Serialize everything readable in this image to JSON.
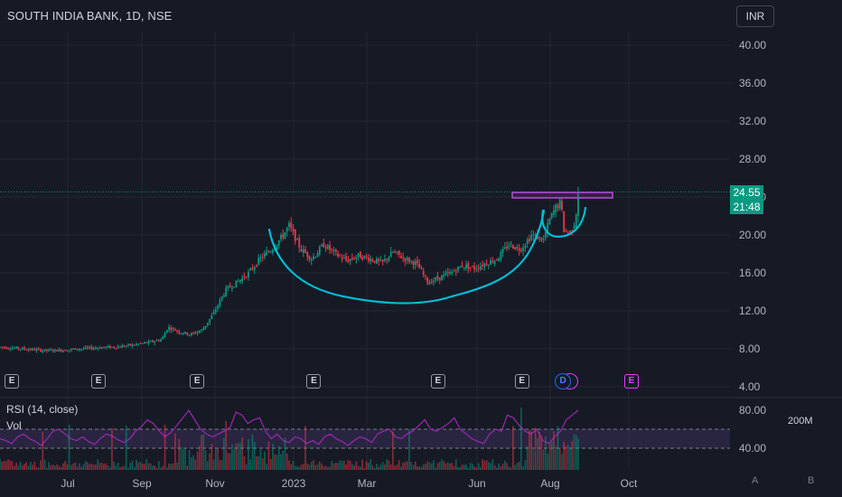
{
  "header": {
    "title": "SOUTH INDIA BANK, 1D, NSE",
    "currency": "INR"
  },
  "price_tag": {
    "price": "24.55",
    "countdown": "21:48"
  },
  "events": {
    "earnings_label": "E",
    "dividend_label": "D"
  },
  "rsi_panel": {
    "label": "RSI (14, close)",
    "vol_label": "Vol",
    "vol_scale": "200M"
  },
  "bottom_buttons": {
    "auto": "A",
    "log": "B"
  },
  "colors": {
    "background": "#161a25",
    "up": "#089981",
    "down": "#f23645",
    "rsi_line": "#9c27b0",
    "rsi_band": "#7e57c2",
    "drawing_cup": "#00bcd4",
    "drawing_rect": "#9c27b0"
  },
  "chart_data": {
    "type": "candlestick",
    "title": "SOUTH INDIA BANK, 1D, NSE",
    "x_ticks": [
      "Jul",
      "Sep",
      "Nov",
      "2023",
      "Mar",
      "Jun",
      "Aug",
      "Oct"
    ],
    "y_ticks": [
      "40.00",
      "36.00",
      "32.00",
      "28.00",
      "24.00",
      "20.00",
      "16.00",
      "12.00",
      "8.00",
      "4.00"
    ],
    "ylim": [
      4,
      40
    ],
    "last_price": 24.55,
    "price_path": [
      [
        0,
        8.2
      ],
      [
        0.04,
        8.0
      ],
      [
        0.08,
        7.8
      ],
      [
        0.12,
        7.9
      ],
      [
        0.16,
        8.1
      ],
      [
        0.2,
        8.2
      ],
      [
        0.23,
        8.4
      ],
      [
        0.26,
        8.7
      ],
      [
        0.28,
        9.0
      ],
      [
        0.29,
        10.3
      ],
      [
        0.31,
        9.8
      ],
      [
        0.33,
        9.5
      ],
      [
        0.35,
        10.0
      ],
      [
        0.37,
        11.8
      ],
      [
        0.39,
        14.2
      ],
      [
        0.41,
        15.0
      ],
      [
        0.43,
        16.0
      ],
      [
        0.45,
        17.5
      ],
      [
        0.47,
        18.5
      ],
      [
        0.49,
        20.0
      ],
      [
        0.5,
        21.0
      ],
      [
        0.52,
        18.5
      ],
      [
        0.54,
        17.5
      ],
      [
        0.56,
        19.0
      ],
      [
        0.58,
        18.0
      ],
      [
        0.6,
        17.3
      ],
      [
        0.62,
        17.8
      ],
      [
        0.64,
        17.5
      ],
      [
        0.66,
        17.0
      ],
      [
        0.68,
        18.2
      ],
      [
        0.7,
        17.5
      ],
      [
        0.72,
        17.0
      ],
      [
        0.74,
        15.0
      ],
      [
        0.76,
        15.5
      ],
      [
        0.78,
        16.0
      ],
      [
        0.8,
        16.8
      ],
      [
        0.82,
        16.5
      ],
      [
        0.84,
        17.0
      ],
      [
        0.86,
        17.5
      ],
      [
        0.88,
        19.0
      ],
      [
        0.9,
        18.5
      ],
      [
        0.92,
        20.0
      ],
      [
        0.94,
        19.5
      ],
      [
        0.95,
        21.5
      ],
      [
        0.96,
        22.8
      ],
      [
        0.97,
        23.5
      ],
      [
        0.975,
        20.5
      ],
      [
        0.985,
        20.2
      ],
      [
        0.995,
        21.5
      ],
      [
        1.0,
        24.55
      ]
    ],
    "rsi": {
      "name": "RSI (14, close)",
      "length": 14,
      "band": [
        40,
        60
      ],
      "y_ticks": [
        "80.00",
        "40.00"
      ],
      "values": [
        50,
        48,
        45,
        52,
        55,
        50,
        47,
        43,
        50,
        58,
        60,
        55,
        50,
        48,
        52,
        47,
        44,
        50,
        55,
        53,
        49,
        46,
        50,
        58,
        63,
        70,
        66,
        58,
        52,
        57,
        64,
        72,
        80,
        70,
        60,
        55,
        52,
        55,
        58,
        62,
        78,
        75,
        66,
        70,
        72,
        58,
        50,
        55,
        48,
        46,
        52,
        50,
        45,
        48,
        44,
        52,
        55,
        50,
        47,
        43,
        48,
        52,
        50,
        46,
        55,
        58,
        60,
        52,
        50,
        55,
        58,
        64,
        70,
        60,
        58,
        62,
        66,
        72,
        60,
        55,
        50,
        47,
        45,
        55,
        60,
        58,
        75,
        72,
        64,
        58,
        55,
        60,
        48,
        45,
        52,
        58,
        70,
        75,
        80
      ]
    },
    "events_earnings_x": [
      0.01,
      0.135,
      0.27,
      0.43,
      0.6,
      0.715,
      0.865
    ],
    "events_dividend_x": 0.765
  }
}
